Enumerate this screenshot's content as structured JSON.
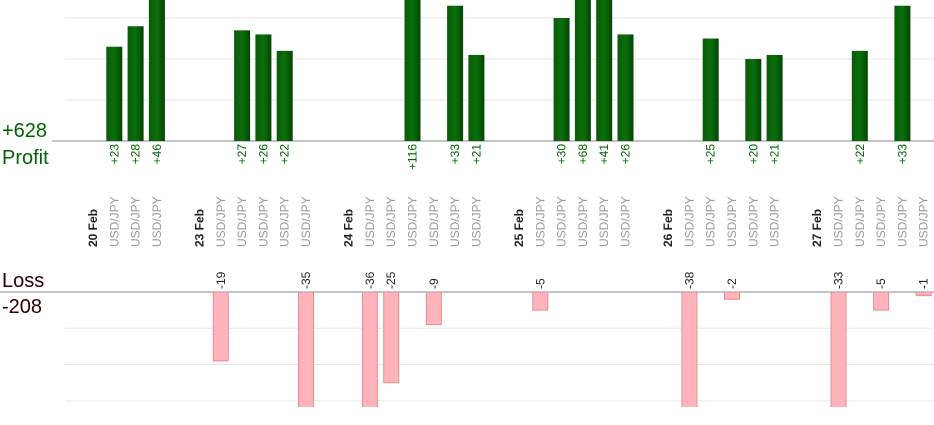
{
  "profit": {
    "title": "Profit",
    "total": 628,
    "total_label": "+628",
    "ylim": [
      0,
      34.4
    ],
    "yticks": [
      0,
      10,
      20,
      30
    ]
  },
  "loss": {
    "title": "Loss",
    "total": -208,
    "ylim": [
      0,
      -31.7
    ],
    "yticks": [
      0,
      -10,
      -20,
      -30
    ]
  },
  "days": [
    {
      "date": "20 Feb",
      "trades": [
        {
          "symbol": "USD/JPY",
          "value": 23,
          "label": "+23"
        },
        {
          "symbol": "USD/JPY",
          "value": 28,
          "label": "+28"
        },
        {
          "symbol": "USD/JPY",
          "value": 46,
          "label": "+46"
        }
      ]
    },
    {
      "date": "23 Feb",
      "trades": [
        {
          "symbol": "USD/JPY",
          "value": -19
        },
        {
          "symbol": "USD/JPY",
          "value": 27,
          "label": "+27"
        },
        {
          "symbol": "USD/JPY",
          "value": 26,
          "label": "+26"
        },
        {
          "symbol": "USD/JPY",
          "value": 22,
          "label": "+22"
        },
        {
          "symbol": "USD/JPY",
          "value": -35
        }
      ]
    },
    {
      "date": "24 Feb",
      "trades": [
        {
          "symbol": "USD/JPY",
          "value": -36
        },
        {
          "symbol": "USD/JPY",
          "value": -25
        },
        {
          "symbol": "USD/JPY",
          "value": 116,
          "label": "+116"
        },
        {
          "symbol": "USD/JPY",
          "value": -9
        },
        {
          "symbol": "USD/JPY",
          "value": 33,
          "label": "+33"
        },
        {
          "symbol": "USD/JPY",
          "value": 21,
          "label": "+21"
        }
      ]
    },
    {
      "date": "25 Feb",
      "trades": [
        {
          "symbol": "USD/JPY",
          "value": -5
        },
        {
          "symbol": "USD/JPY",
          "value": 30,
          "label": "+30"
        },
        {
          "symbol": "USD/JPY",
          "value": 68,
          "label": "+68"
        },
        {
          "symbol": "USD/JPY",
          "value": 41,
          "label": "+41"
        },
        {
          "symbol": "USD/JPY",
          "value": 26,
          "label": "+26"
        }
      ]
    },
    {
      "date": "26 Feb",
      "trades": [
        {
          "symbol": "USD/JPY",
          "value": -38
        },
        {
          "symbol": "USD/JPY",
          "value": 25,
          "label": "+25"
        },
        {
          "symbol": "USD/JPY",
          "value": -2
        },
        {
          "symbol": "USD/JPY",
          "value": 20,
          "label": "+20"
        },
        {
          "symbol": "USD/JPY",
          "value": 21,
          "label": "+21"
        }
      ]
    },
    {
      "date": "27 Feb",
      "trades": [
        {
          "symbol": "USD/JPY",
          "value": -33
        },
        {
          "symbol": "USD/JPY",
          "value": 22,
          "label": "+22"
        },
        {
          "symbol": "USD/JPY",
          "value": -5
        },
        {
          "symbol": "USD/JPY",
          "value": 33,
          "label": "+33"
        },
        {
          "symbol": "USD/JPY",
          "value": -1
        }
      ]
    }
  ]
}
